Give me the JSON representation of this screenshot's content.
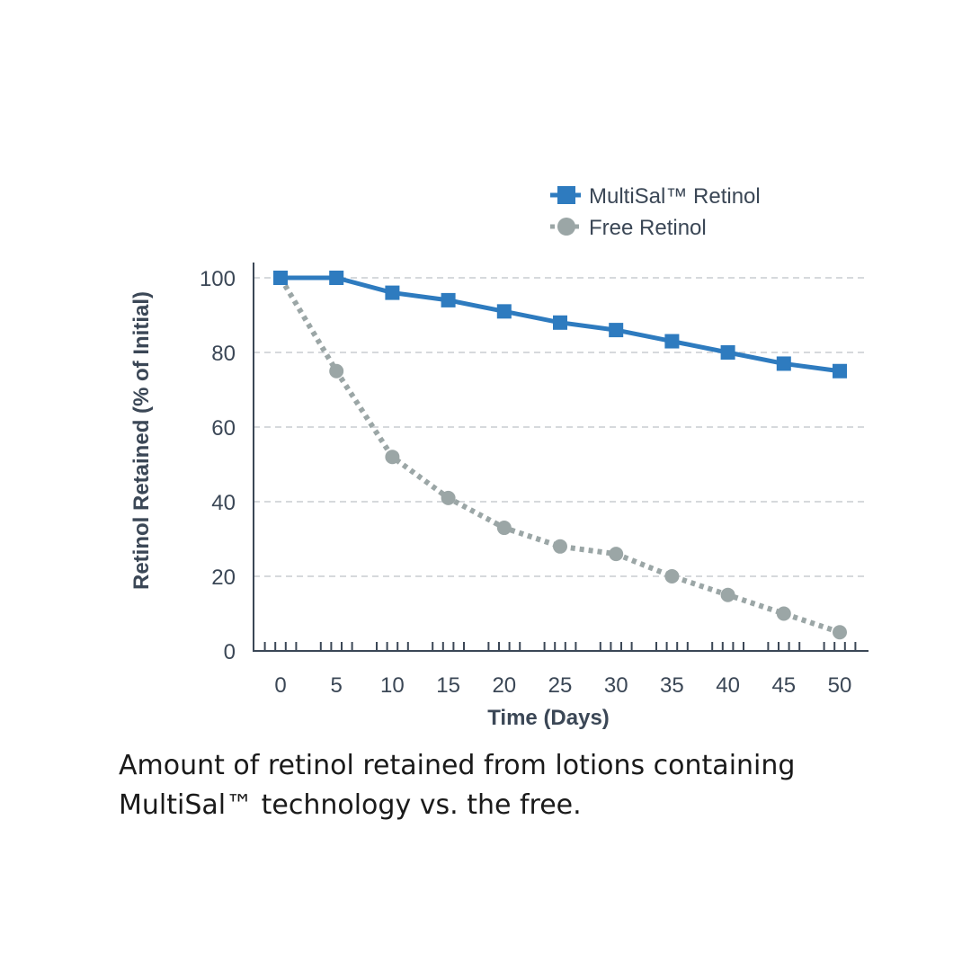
{
  "chart_data": {
    "type": "line",
    "title": "",
    "xlabel": "Time (Days)",
    "ylabel": "Retinol Retained (% of Initial)",
    "x": [
      0,
      5,
      10,
      15,
      20,
      25,
      30,
      35,
      40,
      45,
      50
    ],
    "xticks": [
      "0",
      "5",
      "10",
      "15",
      "20",
      "25",
      "30",
      "35",
      "40",
      "45",
      "50"
    ],
    "yticks": [
      "0",
      "20",
      "40",
      "60",
      "80",
      "100"
    ],
    "xlim": [
      0,
      50
    ],
    "ylim": [
      0,
      100
    ],
    "grid": "horizontal dashed",
    "legend_placement": "top-right",
    "series": [
      {
        "name": "MultiSal™ Retinol",
        "values": [
          100,
          100,
          96,
          94,
          91,
          88,
          86,
          83,
          80,
          77,
          75
        ],
        "color": "#2e7bbf",
        "marker": "square",
        "line": "solid"
      },
      {
        "name": "Free Retinol",
        "values": [
          100,
          75,
          52,
          41,
          33,
          28,
          26,
          20,
          15,
          10,
          5
        ],
        "color": "#9ba6a6",
        "marker": "circle",
        "line": "dotted"
      }
    ]
  },
  "caption": "Amount of retinol retained from lotions containing MultiSal™ technology vs. the free."
}
